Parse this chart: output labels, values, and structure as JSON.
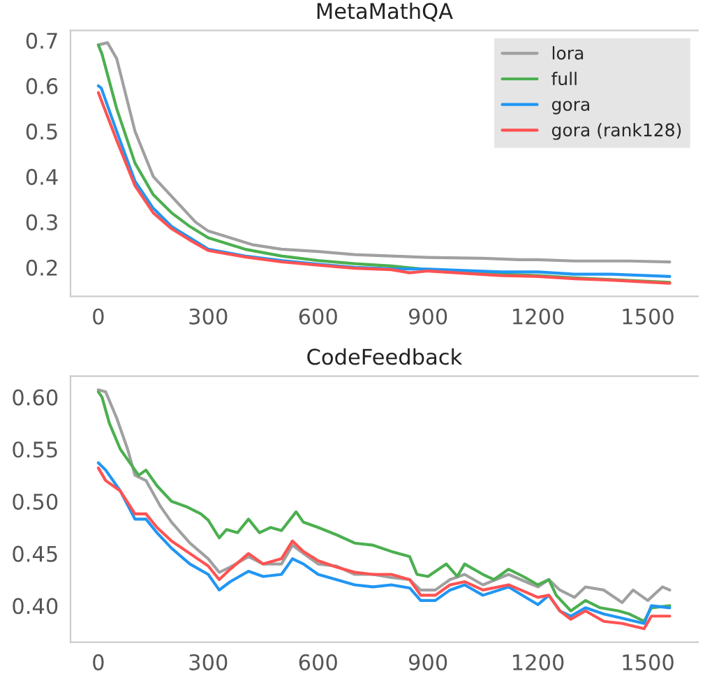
{
  "chart_data": [
    {
      "type": "line",
      "title": "MetaMathQA",
      "xlim": [
        -76,
        1637
      ],
      "ylim": [
        0.136,
        0.722
      ],
      "xticks": [
        0,
        300,
        600,
        900,
        1200,
        1500
      ],
      "yticks": [
        0.2,
        0.3,
        0.4,
        0.5,
        0.6,
        0.7
      ],
      "legend": "top right",
      "grid": false,
      "series": [
        {
          "name": "lora",
          "color": "#a0a0a0",
          "x": [
            0,
            25,
            50,
            100,
            150,
            265,
            300,
            420,
            500,
            600,
            700,
            800,
            900,
            1050,
            1150,
            1200,
            1300,
            1450,
            1560
          ],
          "values": [
            0.69,
            0.695,
            0.66,
            0.5,
            0.4,
            0.3,
            0.28,
            0.25,
            0.24,
            0.235,
            0.228,
            0.225,
            0.222,
            0.22,
            0.217,
            0.217,
            0.214,
            0.214,
            0.212
          ]
        },
        {
          "name": "full",
          "color": "#4caf50",
          "x": [
            0,
            10,
            50,
            100,
            150,
            200,
            250,
            300,
            400,
            500,
            600,
            700,
            800,
            900,
            1000,
            1100,
            1200,
            1300,
            1400,
            1560
          ],
          "values": [
            0.69,
            0.67,
            0.55,
            0.43,
            0.36,
            0.32,
            0.29,
            0.265,
            0.24,
            0.225,
            0.215,
            0.208,
            0.203,
            0.195,
            0.19,
            0.185,
            0.182,
            0.177,
            0.173,
            0.167
          ]
        },
        {
          "name": "gora",
          "color": "#2196f3",
          "x": [
            0,
            8,
            50,
            100,
            150,
            200,
            250,
            300,
            400,
            500,
            600,
            700,
            800,
            900,
            1000,
            1100,
            1200,
            1300,
            1400,
            1560
          ],
          "values": [
            0.6,
            0.595,
            0.5,
            0.39,
            0.33,
            0.29,
            0.265,
            0.24,
            0.225,
            0.215,
            0.207,
            0.2,
            0.197,
            0.196,
            0.193,
            0.19,
            0.19,
            0.185,
            0.185,
            0.18
          ]
        },
        {
          "name": "gora (rank128)",
          "color": "#ff5252",
          "x": [
            0,
            50,
            100,
            150,
            200,
            250,
            300,
            400,
            500,
            600,
            700,
            800,
            850,
            900,
            1000,
            1100,
            1200,
            1300,
            1400,
            1560
          ],
          "values": [
            0.585,
            0.48,
            0.38,
            0.32,
            0.285,
            0.26,
            0.237,
            0.223,
            0.212,
            0.205,
            0.198,
            0.195,
            0.188,
            0.192,
            0.187,
            0.182,
            0.18,
            0.175,
            0.172,
            0.165
          ]
        }
      ]
    },
    {
      "type": "line",
      "title": "CodeFeedback",
      "xlim": [
        -76,
        1637
      ],
      "ylim": [
        0.365,
        0.62
      ],
      "xticks": [
        0,
        300,
        600,
        900,
        1200,
        1500
      ],
      "yticks": [
        {
          "value": 0.4,
          "label": "0.40"
        },
        {
          "value": 0.45,
          "label": "0.45"
        },
        {
          "value": 0.5,
          "label": "0.50"
        },
        {
          "value": 0.55,
          "label": "0.55"
        },
        {
          "value": 0.6,
          "label": "0.60"
        }
      ],
      "legend": false,
      "grid": false,
      "series": [
        {
          "color": "#a0a0a0",
          "x": [
            0,
            20,
            50,
            80,
            100,
            130,
            170,
            200,
            250,
            300,
            330,
            360,
            410,
            450,
            500,
            530,
            560,
            600,
            650,
            700,
            750,
            800,
            850,
            880,
            920,
            960,
            1000,
            1050,
            1120,
            1200,
            1230,
            1260,
            1300,
            1330,
            1380,
            1430,
            1460,
            1500,
            1540,
            1560
          ],
          "values": [
            0.607,
            0.605,
            0.58,
            0.55,
            0.525,
            0.52,
            0.495,
            0.48,
            0.46,
            0.445,
            0.432,
            0.437,
            0.447,
            0.44,
            0.44,
            0.458,
            0.45,
            0.44,
            0.438,
            0.43,
            0.43,
            0.427,
            0.425,
            0.415,
            0.415,
            0.425,
            0.43,
            0.42,
            0.43,
            0.418,
            0.425,
            0.415,
            0.408,
            0.418,
            0.415,
            0.403,
            0.415,
            0.405,
            0.418,
            0.415
          ]
        },
        {
          "color": "#4caf50",
          "x": [
            0,
            10,
            30,
            60,
            90,
            110,
            130,
            160,
            200,
            240,
            280,
            300,
            330,
            350,
            380,
            410,
            440,
            470,
            500,
            540,
            560,
            600,
            650,
            700,
            750,
            800,
            850,
            870,
            900,
            950,
            980,
            1000,
            1050,
            1080,
            1120,
            1160,
            1200,
            1230,
            1250,
            1290,
            1330,
            1370,
            1420,
            1450,
            1490,
            1510,
            1560
          ],
          "values": [
            0.605,
            0.6,
            0.575,
            0.55,
            0.535,
            0.525,
            0.53,
            0.515,
            0.5,
            0.495,
            0.488,
            0.482,
            0.465,
            0.473,
            0.47,
            0.483,
            0.47,
            0.475,
            0.472,
            0.49,
            0.48,
            0.475,
            0.468,
            0.46,
            0.458,
            0.452,
            0.447,
            0.43,
            0.428,
            0.44,
            0.428,
            0.44,
            0.43,
            0.425,
            0.435,
            0.428,
            0.42,
            0.425,
            0.41,
            0.395,
            0.405,
            0.398,
            0.395,
            0.392,
            0.385,
            0.398,
            0.4
          ]
        },
        {
          "color": "#2196f3",
          "x": [
            0,
            20,
            60,
            100,
            130,
            160,
            200,
            250,
            300,
            330,
            360,
            410,
            450,
            500,
            530,
            560,
            600,
            650,
            700,
            750,
            800,
            850,
            880,
            920,
            960,
            1000,
            1050,
            1120,
            1200,
            1230,
            1260,
            1290,
            1330,
            1380,
            1430,
            1490,
            1510,
            1560
          ],
          "values": [
            0.537,
            0.53,
            0.51,
            0.483,
            0.483,
            0.47,
            0.455,
            0.44,
            0.43,
            0.415,
            0.423,
            0.433,
            0.428,
            0.43,
            0.445,
            0.44,
            0.43,
            0.425,
            0.42,
            0.418,
            0.42,
            0.417,
            0.405,
            0.405,
            0.415,
            0.42,
            0.41,
            0.418,
            0.401,
            0.41,
            0.395,
            0.39,
            0.398,
            0.392,
            0.388,
            0.383,
            0.4,
            0.398
          ]
        },
        {
          "color": "#ff5252",
          "x": [
            0,
            20,
            60,
            100,
            130,
            160,
            200,
            250,
            300,
            330,
            360,
            410,
            450,
            500,
            530,
            560,
            600,
            650,
            700,
            750,
            800,
            850,
            880,
            920,
            960,
            1000,
            1050,
            1120,
            1200,
            1230,
            1260,
            1290,
            1330,
            1380,
            1430,
            1490,
            1510,
            1560
          ],
          "values": [
            0.532,
            0.52,
            0.51,
            0.488,
            0.488,
            0.475,
            0.462,
            0.45,
            0.438,
            0.425,
            0.435,
            0.45,
            0.44,
            0.445,
            0.462,
            0.452,
            0.443,
            0.437,
            0.432,
            0.43,
            0.43,
            0.425,
            0.41,
            0.41,
            0.42,
            0.423,
            0.415,
            0.42,
            0.408,
            0.41,
            0.395,
            0.387,
            0.395,
            0.385,
            0.383,
            0.378,
            0.39,
            0.39
          ]
        }
      ]
    }
  ]
}
